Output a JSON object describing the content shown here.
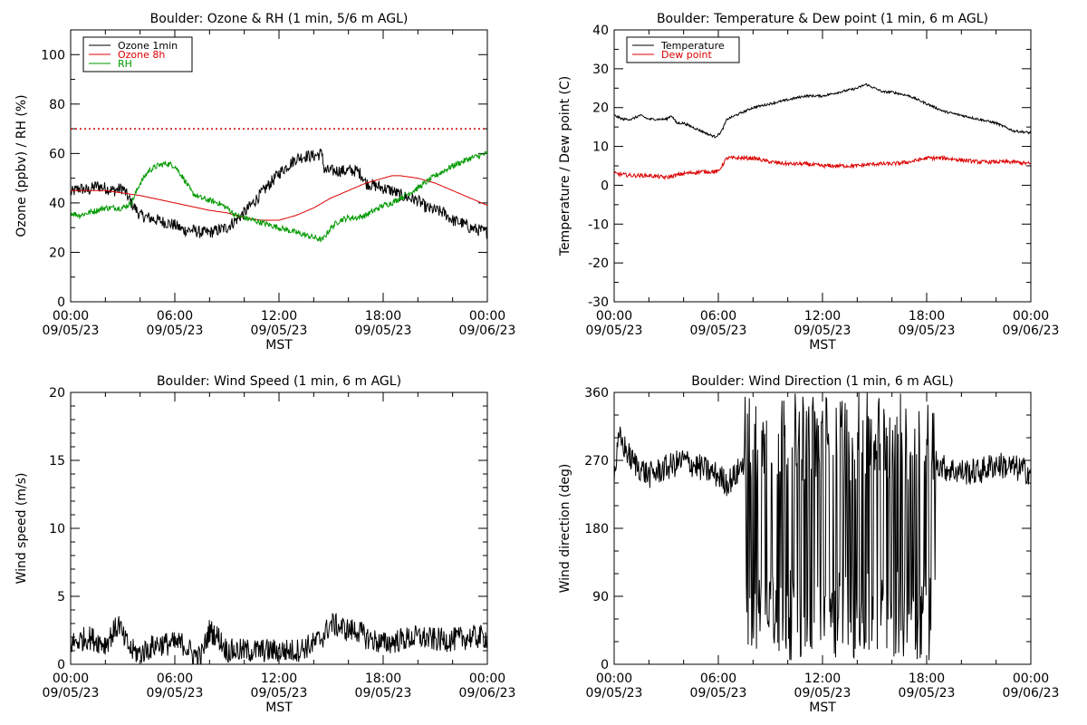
{
  "chart_data": [
    {
      "id": "ozone",
      "type": "line",
      "title": "Boulder: Ozone & RH (1 min, 5/6 m AGL)",
      "ylabel": "Ozone (ppbv) / RH (%)",
      "xlabel": "MST",
      "xlim": [
        0,
        24
      ],
      "ylim": [
        0,
        110
      ],
      "yticks": [
        0,
        20,
        40,
        60,
        80,
        100
      ],
      "y_minor_step": 10,
      "xtick_hours": [
        0,
        6,
        12,
        18,
        24
      ],
      "xtick_time_labels": [
        "00:00",
        "06:00",
        "12:00",
        "18:00",
        "00:00"
      ],
      "xtick_date_labels": [
        "09/05/23",
        "09/05/23",
        "09/05/23",
        "09/05/23",
        "09/06/23"
      ],
      "legend": {
        "placement": "top-left",
        "items": [
          "Ozone 1min",
          "Ozone 8h",
          "RH"
        ]
      },
      "reference_line": {
        "y": 70,
        "style": "dotted",
        "color": "#cc0000"
      },
      "series": [
        {
          "name": "Ozone 1min",
          "color": "#000000",
          "noise": 2.5,
          "x": [
            0,
            0.5,
            1,
            1.5,
            2,
            2.5,
            3,
            3.5,
            4,
            4.5,
            5,
            5.5,
            6,
            6.5,
            7,
            7.5,
            8,
            8.5,
            9,
            9.5,
            10,
            10.5,
            11,
            11.5,
            12,
            12.5,
            13,
            13.5,
            14,
            14.5,
            14.6,
            15,
            15.5,
            16,
            16.5,
            16.8,
            17,
            17.5,
            18,
            18.5,
            19,
            19.5,
            20,
            20.5,
            21,
            21.5,
            22,
            22.5,
            23,
            23.5,
            24
          ],
          "y": [
            44,
            46,
            45,
            47,
            46,
            45,
            46,
            40,
            35,
            34,
            33,
            32,
            31,
            29,
            29,
            28,
            28,
            29,
            30,
            33,
            36,
            40,
            44,
            48,
            52,
            55,
            58,
            59,
            59,
            60,
            53,
            53,
            53,
            53,
            53,
            51,
            48,
            47,
            46,
            45,
            43,
            42,
            41,
            38,
            37,
            36,
            33,
            32,
            30,
            29,
            28
          ]
        },
        {
          "name": "Ozone 8h",
          "color": "#dd0000",
          "noise": 0,
          "x": [
            0,
            2,
            4,
            6,
            8,
            9,
            10,
            11,
            12,
            13,
            14,
            15,
            16,
            17,
            18,
            18.5,
            19,
            20,
            21,
            22,
            23,
            24
          ],
          "y": [
            45,
            45,
            43,
            40,
            37,
            36,
            34,
            33,
            33,
            35,
            38,
            42,
            45,
            48,
            50,
            51,
            51,
            50,
            48,
            45,
            42,
            39
          ]
        },
        {
          "name": "RH",
          "color": "#009900",
          "noise": 1.2,
          "x": [
            0,
            0.5,
            1,
            1.5,
            2,
            2.5,
            3,
            3.5,
            4,
            4.5,
            5,
            5.5,
            6,
            6.5,
            7,
            7.5,
            8,
            8.5,
            9,
            9.5,
            10,
            10.5,
            11,
            12,
            13,
            14,
            14.5,
            15,
            15.5,
            16,
            16.5,
            17,
            17.5,
            18,
            18.5,
            19,
            20,
            21,
            22,
            23,
            24
          ],
          "y": [
            36,
            35,
            36,
            37,
            38,
            38,
            38,
            40,
            48,
            53,
            55,
            56,
            55,
            50,
            44,
            42,
            41,
            40,
            38,
            35,
            34,
            33,
            32,
            30,
            28,
            26,
            25,
            30,
            33,
            34,
            34,
            35,
            37,
            39,
            40,
            42,
            46,
            51,
            55,
            58,
            60
          ]
        }
      ]
    },
    {
      "id": "temp",
      "type": "line",
      "title": "Boulder: Temperature & Dew point (1 min, 6 m AGL)",
      "ylabel": "Temperature / Dew point (C)",
      "xlabel": "MST",
      "xlim": [
        0,
        24
      ],
      "ylim": [
        -30,
        40
      ],
      "yticks": [
        -30,
        -20,
        -10,
        0,
        10,
        20,
        30,
        40
      ],
      "y_minor_step": 5,
      "xtick_hours": [
        0,
        6,
        12,
        18,
        24
      ],
      "xtick_time_labels": [
        "00:00",
        "06:00",
        "12:00",
        "18:00",
        "00:00"
      ],
      "xtick_date_labels": [
        "09/05/23",
        "09/05/23",
        "09/05/23",
        "09/05/23",
        "09/06/23"
      ],
      "legend": {
        "placement": "top-left",
        "items": [
          "Temperature",
          "Dew point"
        ]
      },
      "series": [
        {
          "name": "Temperature",
          "color": "#000000",
          "noise": 0.3,
          "x": [
            0,
            0.5,
            1,
            1.5,
            2,
            2.5,
            3,
            3.3,
            3.6,
            4,
            4.5,
            5,
            5.5,
            5.8,
            6,
            6.2,
            6.5,
            7,
            7.5,
            8,
            9,
            10,
            11,
            12,
            13,
            14,
            14.5,
            15,
            15.5,
            16,
            17,
            18,
            19,
            20,
            21,
            22,
            23,
            24
          ],
          "y": [
            18,
            17,
            17,
            18,
            17,
            17,
            17,
            18,
            16,
            16,
            15,
            14,
            13,
            12.5,
            13,
            14,
            17,
            18,
            19,
            20,
            21,
            22,
            23,
            23,
            24,
            25,
            26,
            25,
            24,
            24,
            23,
            21,
            19,
            18,
            17,
            16,
            14,
            13.5
          ]
        },
        {
          "name": "Dew point",
          "color": "#dd0000",
          "noise": 0.5,
          "x": [
            0,
            1,
            2,
            3,
            4,
            5,
            6,
            6.2,
            6.5,
            7,
            8,
            9,
            10,
            11,
            12,
            13,
            14,
            15,
            16,
            17,
            18,
            19,
            20,
            21,
            22,
            23,
            24
          ],
          "y": [
            3,
            2.5,
            2.5,
            2,
            3,
            3.5,
            3.5,
            5,
            7,
            7,
            7,
            6,
            5.5,
            5.5,
            5,
            5,
            5,
            5.5,
            5.5,
            6,
            7,
            7,
            6.5,
            6,
            6,
            6,
            5.5
          ]
        }
      ]
    },
    {
      "id": "speed",
      "type": "line",
      "title": "Boulder: Wind Speed (1 min, 6 m AGL)",
      "ylabel": "Wind speed (m/s)",
      "xlabel": "MST",
      "xlim": [
        0,
        24
      ],
      "ylim": [
        0,
        20
      ],
      "yticks": [
        0,
        5,
        10,
        15,
        20
      ],
      "y_minor_step": 1,
      "xtick_hours": [
        0,
        6,
        12,
        18,
        24
      ],
      "xtick_time_labels": [
        "00:00",
        "06:00",
        "12:00",
        "18:00",
        "00:00"
      ],
      "xtick_date_labels": [
        "09/05/23",
        "09/05/23",
        "09/05/23",
        "09/05/23",
        "09/06/23"
      ],
      "series": [
        {
          "color": "#000000",
          "noise": 0.9,
          "x": [
            0,
            1,
            2,
            2.8,
            3,
            3.5,
            4,
            5,
            6,
            6.5,
            7,
            7.5,
            8,
            8.5,
            9,
            10,
            11,
            12,
            13,
            14,
            14.5,
            15,
            16,
            16.5,
            17,
            18,
            19,
            20,
            21,
            22,
            23,
            24
          ],
          "y": [
            1.5,
            2,
            1.5,
            3,
            2,
            1,
            0.8,
            1.5,
            1.5,
            1.5,
            0.8,
            0.5,
            2.5,
            2,
            1,
            1,
            1,
            1,
            1,
            1.5,
            2,
            3,
            2.5,
            2.5,
            2,
            1.5,
            1.8,
            2,
            1.8,
            1.8,
            2,
            2
          ]
        }
      ]
    },
    {
      "id": "dir",
      "type": "line",
      "title": "Boulder: Wind Direction (1 min, 6 m AGL)",
      "ylabel": "Wind direction (deg)",
      "xlabel": "MST",
      "xlim": [
        0,
        24
      ],
      "ylim": [
        0,
        360
      ],
      "yticks": [
        0,
        90,
        180,
        270,
        360
      ],
      "y_minor_step": 30,
      "xtick_hours": [
        0,
        6,
        12,
        18,
        24
      ],
      "xtick_time_labels": [
        "00:00",
        "06:00",
        "12:00",
        "18:00",
        "00:00"
      ],
      "xtick_date_labels": [
        "09/05/23",
        "09/05/23",
        "09/05/23",
        "09/05/23",
        "09/06/23"
      ],
      "series": [
        {
          "color": "#000000",
          "noise": 18,
          "erratic_hours": [
            7.5,
            18.5
          ],
          "x": [
            0,
            0.3,
            1,
            1.5,
            2,
            3,
            4,
            5,
            6,
            6.5,
            7,
            7.5,
            8,
            9,
            10,
            11,
            12,
            13,
            14,
            15,
            16,
            17,
            18,
            18.5,
            19,
            20,
            21,
            22,
            23,
            24
          ],
          "y": [
            250,
            300,
            270,
            260,
            250,
            260,
            270,
            260,
            250,
            240,
            250,
            270,
            200,
            150,
            120,
            100,
            150,
            100,
            90,
            50,
            30,
            30,
            300,
            270,
            260,
            255,
            255,
            265,
            260,
            255
          ]
        }
      ]
    }
  ]
}
